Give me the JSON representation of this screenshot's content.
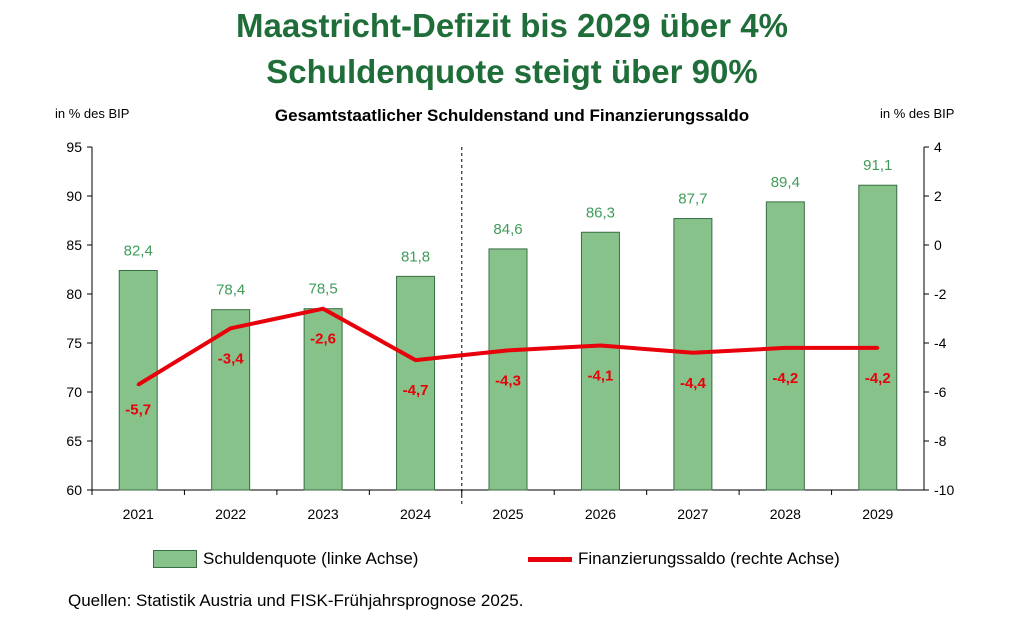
{
  "headline": {
    "line1": "Maastricht-Defizit bis 2029 über 4%",
    "line2": "Schuldenquote steigt über 90%"
  },
  "chart_data": {
    "type": "bar",
    "title": "Gesamtstaatlicher Schuldenstand und Finanzierungssaldo",
    "left_axis_label": "in % des BIP",
    "right_axis_label": "in % des BIP",
    "categories": [
      "2021",
      "2022",
      "2023",
      "2024",
      "2025",
      "2026",
      "2027",
      "2028",
      "2029"
    ],
    "y_left_lim": [
      60,
      95
    ],
    "y_left_ticks": [
      "60",
      "65",
      "70",
      "75",
      "80",
      "85",
      "90",
      "95"
    ],
    "y_right_lim": [
      -10,
      4
    ],
    "y_right_ticks": [
      "-10",
      "-8",
      "-6",
      "-4",
      "-2",
      "0",
      "2",
      "4"
    ],
    "forecast_divider_after": "2024",
    "series": [
      {
        "name": "Schuldenquote (linke Achse)",
        "type": "bar",
        "axis": "left",
        "values": [
          82.4,
          78.4,
          78.5,
          81.8,
          84.6,
          86.3,
          87.7,
          89.4,
          91.1
        ],
        "labels": [
          "82,4",
          "78,4",
          "78,5",
          "81,8",
          "84,6",
          "86,3",
          "87,7",
          "89,4",
          "91,1"
        ],
        "color": "#86c28a"
      },
      {
        "name": "Finanzierungssaldo (rechte Achse)",
        "type": "line",
        "axis": "right",
        "values": [
          -5.7,
          -3.4,
          -2.6,
          -4.7,
          -4.3,
          -4.1,
          -4.4,
          -4.2,
          -4.2
        ],
        "labels": [
          "-5,7",
          "-3,4",
          "-2,6",
          "-4,7",
          "-4,3",
          "-4,1",
          "-4,4",
          "-4,2",
          "-4,2"
        ],
        "color": "#e8000b"
      }
    ],
    "legend_position": "bottom"
  },
  "source": "Quellen: Statistik Austria und FISK-Frühjahrsprognose 2025."
}
